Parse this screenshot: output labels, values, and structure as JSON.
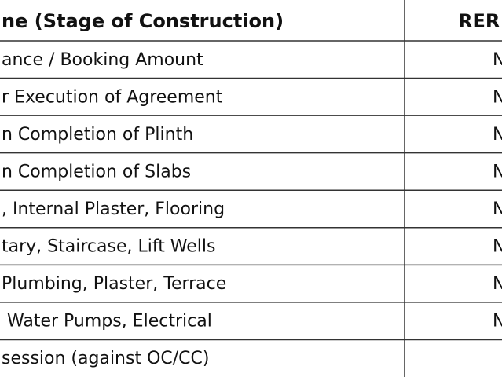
{
  "table": {
    "header": [
      "ne (Stage of Construction)",
      "RER"
    ],
    "rows": [
      [
        "ance / Booking Amount",
        "N"
      ],
      [
        "r Execution of Agreement",
        "N"
      ],
      [
        "n Completion of Plinth",
        "N"
      ],
      [
        "n Completion of Slabs",
        "N"
      ],
      [
        ", Internal Plaster, Flooring",
        "N"
      ],
      [
        "tary, Staircase, Lift Wells",
        "N"
      ],
      [
        "Plumbing, Plaster, Terrace",
        "N"
      ],
      [
        " Water Pumps, Electrical",
        "N"
      ],
      [
        "session (against OC/CC)"
      ]
    ]
  }
}
